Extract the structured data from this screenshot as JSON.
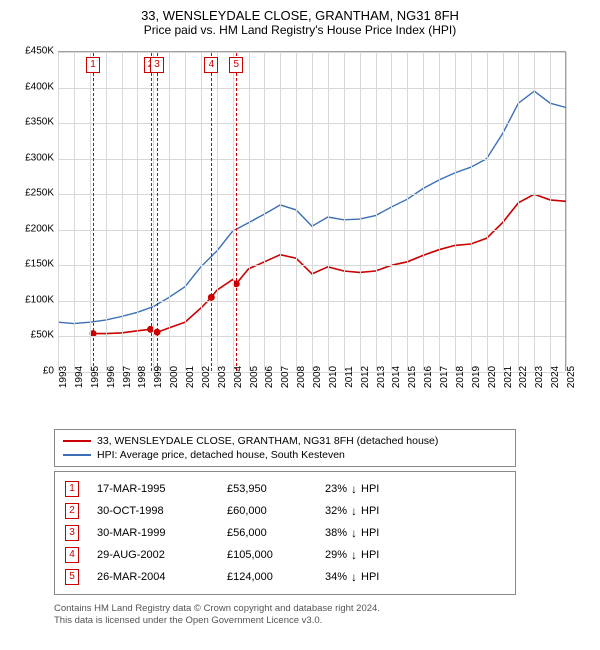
{
  "title": "33, WENSLEYDALE CLOSE, GRANTHAM, NG31 8FH",
  "subtitle": "Price paid vs. HM Land Registry's House Price Index (HPI)",
  "chart": {
    "type": "line",
    "background_color": "#ffffff",
    "grid_color": "#d8d8d8",
    "axis_color": "#a0a0a0",
    "xlim": [
      1993,
      2025
    ],
    "ylim": [
      0,
      450000
    ],
    "ytick_step": 50000,
    "yticks": [
      "£0",
      "£50K",
      "£100K",
      "£150K",
      "£200K",
      "£250K",
      "£300K",
      "£350K",
      "£400K",
      "£450K"
    ],
    "xticks": [
      1993,
      1994,
      1995,
      1996,
      1997,
      1998,
      1999,
      2000,
      2001,
      2002,
      2003,
      2004,
      2005,
      2006,
      2007,
      2008,
      2009,
      2010,
      2011,
      2012,
      2013,
      2014,
      2015,
      2016,
      2017,
      2018,
      2019,
      2020,
      2021,
      2022,
      2023,
      2024,
      2025
    ],
    "series": [
      {
        "name": "property",
        "label": "33, WENSLEYDALE CLOSE, GRANTHAM, NG31 8FH (detached house)",
        "color": "#cc0000",
        "line_width": 1.6,
        "points_x": [
          1995.2,
          1996,
          1997,
          1998,
          1998.8,
          1999.25,
          2000,
          2001,
          2002,
          2002.66,
          2003,
          2004,
          2004.23,
          2005,
          2006,
          2007,
          2008,
          2009,
          2010,
          2011,
          2012,
          2013,
          2014,
          2015,
          2016,
          2017,
          2018,
          2019,
          2020,
          2021,
          2022,
          2023,
          2024,
          2025
        ],
        "points_y": [
          53950,
          54000,
          55000,
          58000,
          60000,
          56000,
          62000,
          70000,
          90000,
          105000,
          115000,
          130000,
          124000,
          145000,
          155000,
          165000,
          160000,
          138000,
          148000,
          142000,
          140000,
          142000,
          150000,
          155000,
          164000,
          172000,
          178000,
          180000,
          188000,
          210000,
          238000,
          250000,
          242000,
          240000
        ]
      },
      {
        "name": "hpi",
        "label": "HPI: Average price, detached house, South Kesteven",
        "color": "#3b6fb6",
        "line_width": 1.4,
        "points_x": [
          1993,
          1994,
          1995,
          1996,
          1997,
          1998,
          1999,
          2000,
          2001,
          2002,
          2003,
          2004,
          2005,
          2006,
          2007,
          2008,
          2009,
          2010,
          2011,
          2012,
          2013,
          2014,
          2015,
          2016,
          2017,
          2018,
          2019,
          2020,
          2021,
          2022,
          2023,
          2024,
          2025
        ],
        "points_y": [
          70000,
          68000,
          70000,
          73000,
          78000,
          84000,
          92000,
          105000,
          120000,
          148000,
          170000,
          198000,
          210000,
          222000,
          235000,
          228000,
          205000,
          218000,
          214000,
          215000,
          220000,
          232000,
          243000,
          258000,
          270000,
          280000,
          288000,
          300000,
          335000,
          378000,
          395000,
          378000,
          372000
        ]
      }
    ],
    "markers": [
      {
        "num": "1",
        "year": 1995.21,
        "value": 53950
      },
      {
        "num": "2",
        "year": 1998.83,
        "value": 60000
      },
      {
        "num": "3",
        "year": 1999.24,
        "value": 56000
      },
      {
        "num": "4",
        "year": 2002.66,
        "value": 105000
      },
      {
        "num": "5",
        "year": 2004.23,
        "value": 124000
      }
    ],
    "title_fontsize": 13,
    "label_fontsize": 10
  },
  "legend": {
    "s1_color": "#cc0000",
    "s2_color": "#3b6fb6"
  },
  "events": [
    {
      "num": "1",
      "date": "17-MAR-1995",
      "price": "£53,950",
      "pct": "23%",
      "dir": "↓",
      "suffix": "HPI"
    },
    {
      "num": "2",
      "date": "30-OCT-1998",
      "price": "£60,000",
      "pct": "32%",
      "dir": "↓",
      "suffix": "HPI"
    },
    {
      "num": "3",
      "date": "30-MAR-1999",
      "price": "£56,000",
      "pct": "38%",
      "dir": "↓",
      "suffix": "HPI"
    },
    {
      "num": "4",
      "date": "29-AUG-2002",
      "price": "£105,000",
      "pct": "29%",
      "dir": "↓",
      "suffix": "HPI"
    },
    {
      "num": "5",
      "date": "26-MAR-2004",
      "price": "£124,000",
      "pct": "34%",
      "dir": "↓",
      "suffix": "HPI"
    }
  ],
  "footer_l1": "Contains HM Land Registry data © Crown copyright and database right 2024.",
  "footer_l2": "This data is licensed under the Open Government Licence v3.0."
}
